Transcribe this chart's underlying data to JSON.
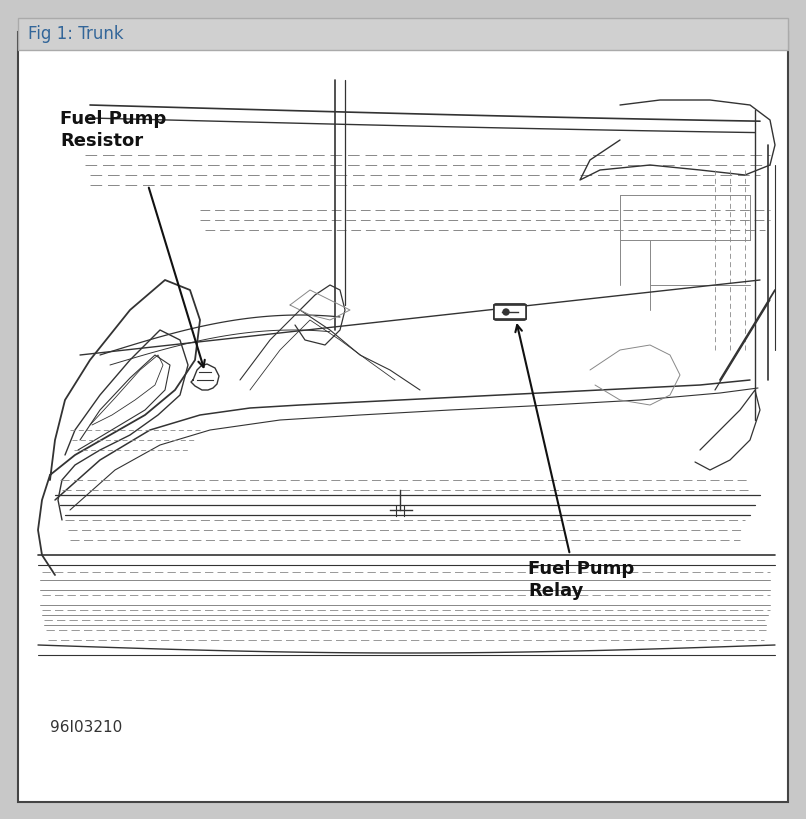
{
  "title": "Fig 1: Trunk",
  "title_color": "#336699",
  "title_bg": "#d0d0d0",
  "bg_color": "#c8c8c8",
  "inner_bg": "#ffffff",
  "border_color": "#444444",
  "label1": "Fuel Pump\nResistor",
  "label2": "Fuel Pump\nRelay",
  "caption": "96I03210",
  "figsize": [
    8.06,
    8.19
  ],
  "dpi": 100
}
